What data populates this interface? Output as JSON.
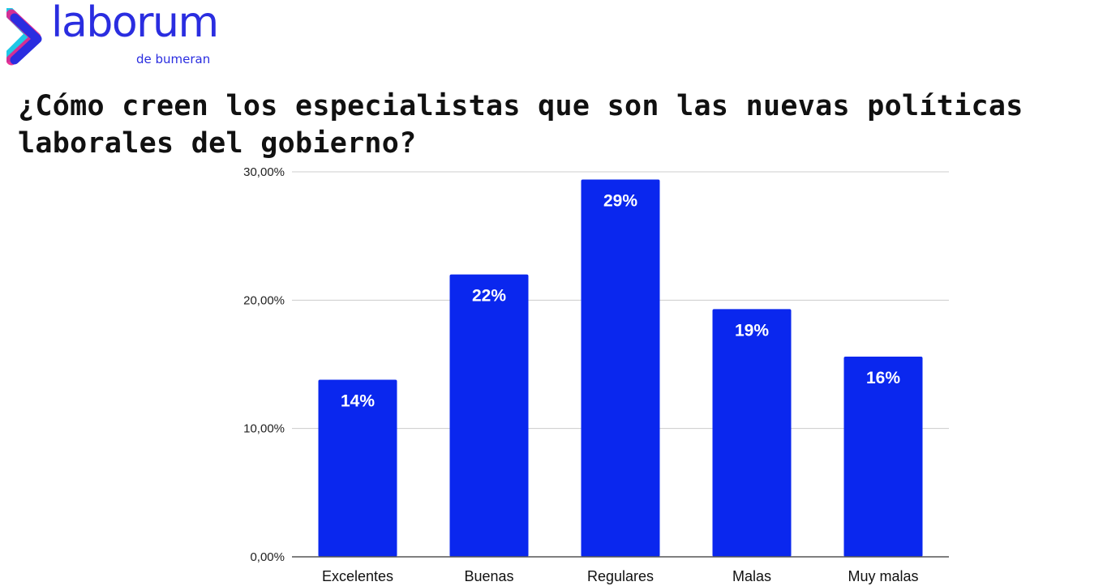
{
  "brand": {
    "wordmark": "laborum",
    "sub": "de bumeran",
    "colors": {
      "primary": "#2a2de0",
      "accent_pink": "#e61e8c",
      "accent_cyan": "#1ec8e6"
    }
  },
  "chart_data": {
    "type": "bar",
    "title": "¿Cómo creen los especialistas que son las nuevas políticas laborales del gobierno?",
    "categories": [
      "Excelentes",
      "Buenas",
      "Regulares",
      "Malas",
      "Muy malas"
    ],
    "values": [
      13.8,
      22.0,
      29.4,
      19.3,
      15.6
    ],
    "data_labels": [
      "14%",
      "22%",
      "29%",
      "19%",
      "16%"
    ],
    "ylim": [
      0,
      30
    ],
    "yticks": [
      0,
      10,
      20,
      30
    ],
    "ytick_labels": [
      "0,00%",
      "10,00%",
      "20,00%",
      "30,00%"
    ],
    "grid": true,
    "bar_color": "#0a27ee",
    "grid_color": "#cccccc",
    "axis_color": "#555555"
  }
}
